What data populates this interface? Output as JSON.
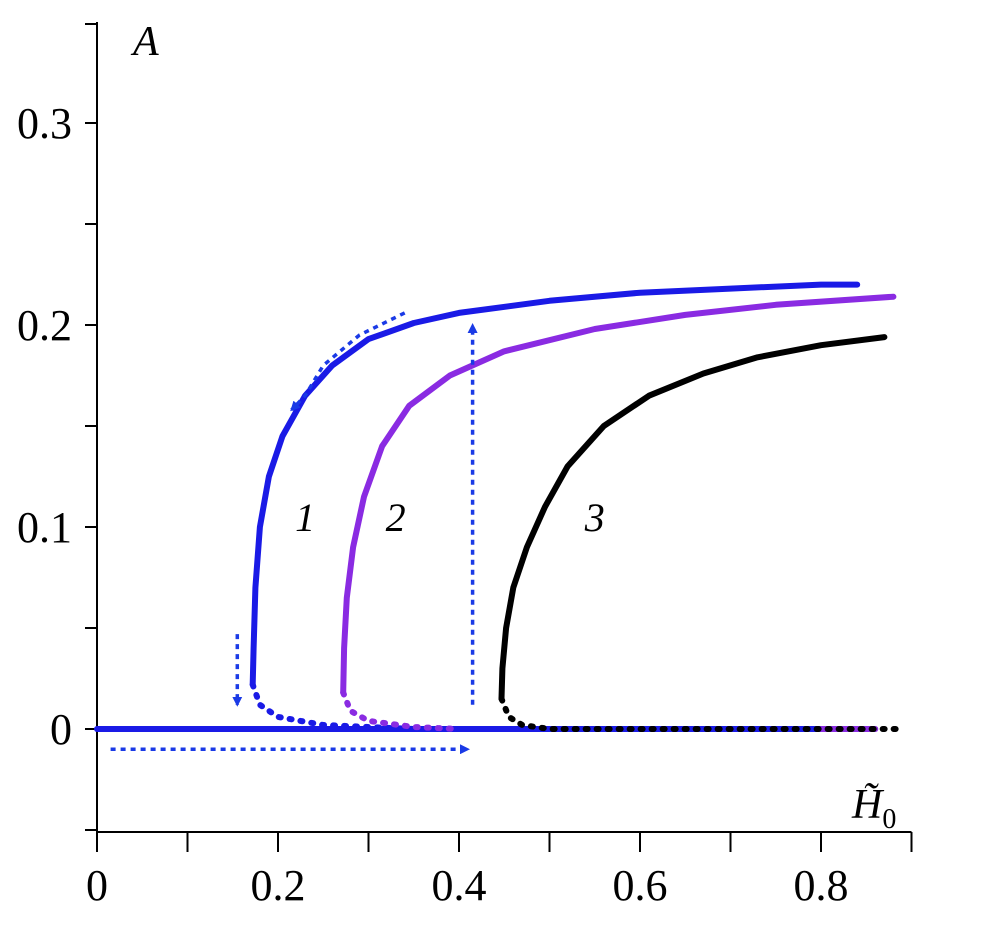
{
  "chart_data": {
    "type": "line",
    "title": "",
    "xlabel": "H̃0",
    "ylabel": "A",
    "xlim": [
      0,
      0.9
    ],
    "ylim": [
      -0.05,
      0.35
    ],
    "x_ticks": [
      0,
      0.1,
      0.2,
      0.3,
      0.4,
      0.5,
      0.6,
      0.7,
      0.8,
      0.9
    ],
    "x_tick_labels": [
      {
        "value": 0,
        "label": "0"
      },
      {
        "value": 0.2,
        "label": "0.2"
      },
      {
        "value": 0.4,
        "label": "0.4"
      },
      {
        "value": 0.6,
        "label": "0.6"
      },
      {
        "value": 0.8,
        "label": "0.8"
      }
    ],
    "y_ticks": [
      -0.05,
      0,
      0.05,
      0.1,
      0.15,
      0.2,
      0.25,
      0.3
    ],
    "y_tick_labels": [
      {
        "value": 0,
        "label": "0"
      },
      {
        "value": 0.1,
        "label": "0.1"
      },
      {
        "value": 0.2,
        "label": "0.2"
      },
      {
        "value": 0.3,
        "label": "0.3"
      }
    ],
    "grid": false,
    "legend": "none",
    "series": [
      {
        "label": "1",
        "color": "#1a1ae6",
        "stable_upper": [
          [
            0.172,
            0.022
          ],
          [
            0.173,
            0.04
          ],
          [
            0.175,
            0.07
          ],
          [
            0.18,
            0.1
          ],
          [
            0.19,
            0.125
          ],
          [
            0.205,
            0.145
          ],
          [
            0.23,
            0.165
          ],
          [
            0.26,
            0.18
          ],
          [
            0.3,
            0.193
          ],
          [
            0.35,
            0.201
          ],
          [
            0.4,
            0.206
          ],
          [
            0.5,
            0.212
          ],
          [
            0.6,
            0.216
          ],
          [
            0.7,
            0.218
          ],
          [
            0.8,
            0.22
          ],
          [
            0.84,
            0.22
          ]
        ],
        "unstable": [
          [
            0.172,
            0.022
          ],
          [
            0.18,
            0.012
          ],
          [
            0.2,
            0.006
          ],
          [
            0.25,
            0.002
          ],
          [
            0.3,
            0.001
          ],
          [
            0.35,
            0.0
          ]
        ],
        "stable_zero": [
          [
            0,
            0
          ],
          [
            0.8,
            0
          ]
        ],
        "label_position": [
          0.23,
          0.105
        ]
      },
      {
        "label": "2",
        "color": "#8a2be2",
        "stable_upper": [
          [
            0.272,
            0.018
          ],
          [
            0.273,
            0.04
          ],
          [
            0.276,
            0.065
          ],
          [
            0.283,
            0.09
          ],
          [
            0.295,
            0.115
          ],
          [
            0.315,
            0.14
          ],
          [
            0.345,
            0.16
          ],
          [
            0.39,
            0.175
          ],
          [
            0.45,
            0.187
          ],
          [
            0.55,
            0.198
          ],
          [
            0.65,
            0.205
          ],
          [
            0.75,
            0.21
          ],
          [
            0.88,
            0.214
          ]
        ],
        "unstable": [
          [
            0.272,
            0.018
          ],
          [
            0.28,
            0.009
          ],
          [
            0.3,
            0.004
          ],
          [
            0.35,
            0.001
          ],
          [
            0.4,
            0.0
          ]
        ],
        "stable_zero": [
          [
            0.8,
            0
          ],
          [
            0.86,
            0
          ]
        ],
        "label_position": [
          0.33,
          0.105
        ]
      },
      {
        "label": "3",
        "color": "#000000",
        "stable_upper": [
          [
            0.447,
            0.015
          ],
          [
            0.448,
            0.03
          ],
          [
            0.452,
            0.05
          ],
          [
            0.46,
            0.07
          ],
          [
            0.475,
            0.09
          ],
          [
            0.495,
            0.11
          ],
          [
            0.52,
            0.13
          ],
          [
            0.56,
            0.15
          ],
          [
            0.61,
            0.165
          ],
          [
            0.67,
            0.176
          ],
          [
            0.73,
            0.184
          ],
          [
            0.8,
            0.19
          ],
          [
            0.87,
            0.194
          ]
        ],
        "unstable": [
          [
            0.447,
            0.015
          ],
          [
            0.455,
            0.006
          ],
          [
            0.47,
            0.002
          ],
          [
            0.5,
            0.0
          ],
          [
            0.89,
            0.0
          ]
        ],
        "label_position": [
          0.55,
          0.105
        ]
      }
    ],
    "annotations": {
      "hysteresis_arrows_color": "#1a3ae6",
      "arrows": [
        {
          "from": [
            0.015,
            -0.01
          ],
          "to": [
            0.41,
            -0.01
          ]
        },
        {
          "from": [
            0.415,
            0.012
          ],
          "to": [
            0.415,
            0.2
          ]
        },
        {
          "path": [
            [
              0.34,
              0.206
            ],
            [
              0.29,
              0.195
            ],
            [
              0.25,
              0.18
            ],
            [
              0.23,
              0.165
            ],
            [
              0.215,
              0.158
            ]
          ]
        },
        {
          "from": [
            0.155,
            0.047
          ],
          "to": [
            0.155,
            0.012
          ]
        }
      ]
    }
  }
}
